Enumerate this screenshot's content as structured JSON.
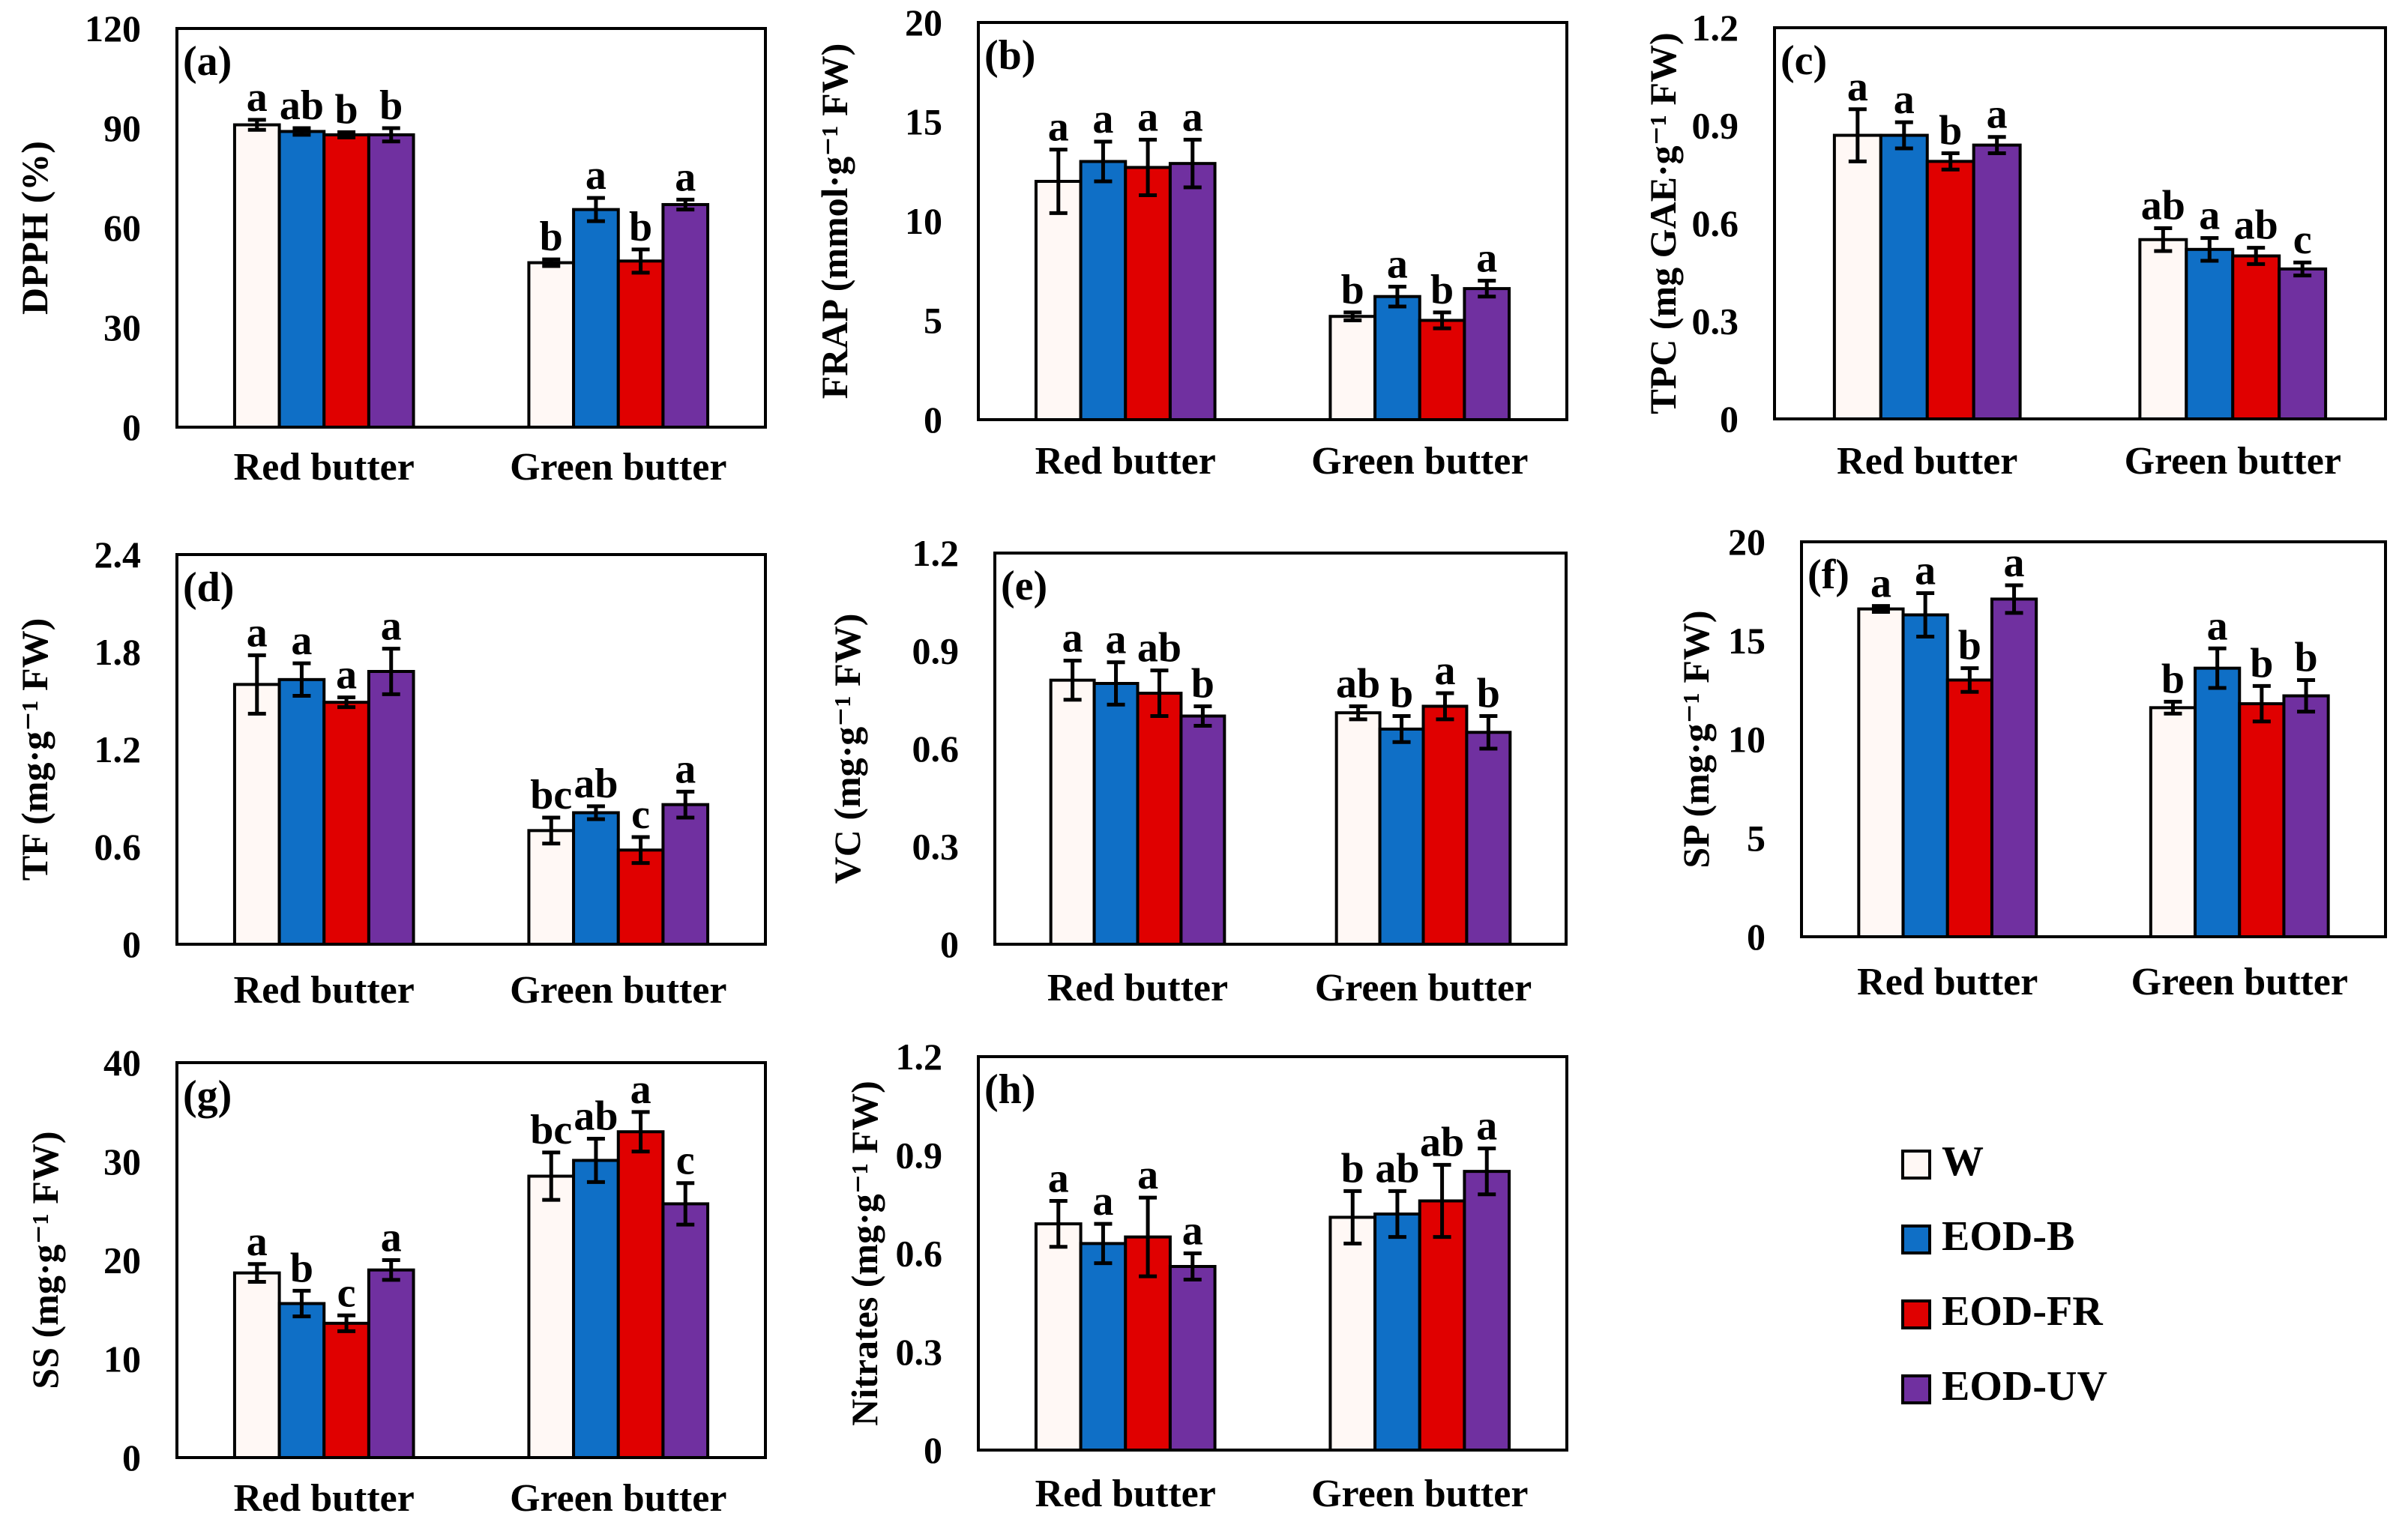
{
  "legend": {
    "items": [
      {
        "name": "W",
        "color": "#fff8f5"
      },
      {
        "name": "EOD-B",
        "color": "#0f6fc6"
      },
      {
        "name": "EOD-FR",
        "color": "#e00000"
      },
      {
        "name": "EOD-UV",
        "color": "#7030a0"
      }
    ]
  },
  "chart_data": [
    {
      "panel": "(a)",
      "type": "bar",
      "ylabel": "DPPH (%)",
      "ylim": [
        0,
        120
      ],
      "yticks": [
        "0",
        "30",
        "60",
        "90",
        "120"
      ],
      "categories": [
        "Red butter",
        "Green butter"
      ],
      "series": [
        {
          "name": "W",
          "values": [
            91,
            49.5
          ],
          "errors": [
            1.5,
            1
          ],
          "letters": [
            "a",
            "b"
          ]
        },
        {
          "name": "EOD-B",
          "values": [
            89,
            65.5
          ],
          "errors": [
            1,
            3.5
          ],
          "letters": [
            "ab",
            "a"
          ]
        },
        {
          "name": "EOD-FR",
          "values": [
            88,
            50
          ],
          "errors": [
            0.8,
            3.5
          ],
          "letters": [
            "b",
            "b"
          ]
        },
        {
          "name": "EOD-UV",
          "values": [
            88,
            67
          ],
          "errors": [
            2,
            1.5
          ],
          "letters": [
            "b",
            "a"
          ]
        }
      ]
    },
    {
      "panel": "(b)",
      "type": "bar",
      "ylabel": "FRAP (mmol·g⁻¹ FW)",
      "ylim": [
        0,
        20
      ],
      "yticks": [
        "0",
        "5",
        "10",
        "15",
        "20"
      ],
      "categories": [
        "Red butter",
        "Green butter"
      ],
      "series": [
        {
          "name": "W",
          "values": [
            12,
            5.2
          ],
          "errors": [
            1.6,
            0.2
          ],
          "letters": [
            "a",
            "b"
          ]
        },
        {
          "name": "EOD-B",
          "values": [
            13,
            6.2
          ],
          "errors": [
            1,
            0.5
          ],
          "letters": [
            "a",
            "a"
          ]
        },
        {
          "name": "EOD-FR",
          "values": [
            12.7,
            5
          ],
          "errors": [
            1.4,
            0.4
          ],
          "letters": [
            "a",
            "b"
          ]
        },
        {
          "name": "EOD-UV",
          "values": [
            12.9,
            6.6
          ],
          "errors": [
            1.2,
            0.4
          ],
          "letters": [
            "a",
            "a"
          ]
        }
      ]
    },
    {
      "panel": "(c)",
      "type": "bar",
      "ylabel": "TPC (mg GAE·g⁻¹ FW)",
      "ylim": [
        0,
        1.2
      ],
      "yticks": [
        "0",
        "0.3",
        "0.6",
        "0.9",
        "1.2"
      ],
      "categories": [
        "Red butter",
        "Green butter"
      ],
      "series": [
        {
          "name": "W",
          "values": [
            0.87,
            0.55
          ],
          "errors": [
            0.08,
            0.035
          ],
          "letters": [
            "a",
            "ab"
          ]
        },
        {
          "name": "EOD-B",
          "values": [
            0.87,
            0.52
          ],
          "errors": [
            0.04,
            0.035
          ],
          "letters": [
            "a",
            "a"
          ]
        },
        {
          "name": "EOD-FR",
          "values": [
            0.79,
            0.5
          ],
          "errors": [
            0.025,
            0.025
          ],
          "letters": [
            "b",
            "ab"
          ]
        },
        {
          "name": "EOD-UV",
          "values": [
            0.84,
            0.46
          ],
          "errors": [
            0.025,
            0.02
          ],
          "letters": [
            "a",
            "c"
          ]
        }
      ]
    },
    {
      "panel": "(d)",
      "type": "bar",
      "ylabel": "TF (mg·g⁻¹ FW)",
      "ylim": [
        0,
        2.4
      ],
      "yticks": [
        "0",
        "0.6",
        "1.2",
        "1.8",
        "2.4"
      ],
      "categories": [
        "Red butter",
        "Green butter"
      ],
      "series": [
        {
          "name": "W",
          "values": [
            1.6,
            0.7
          ],
          "errors": [
            0.18,
            0.08
          ],
          "letters": [
            "a",
            "bc"
          ]
        },
        {
          "name": "EOD-B",
          "values": [
            1.63,
            0.81
          ],
          "errors": [
            0.1,
            0.04
          ],
          "letters": [
            "a",
            "ab"
          ]
        },
        {
          "name": "EOD-FR",
          "values": [
            1.49,
            0.58
          ],
          "errors": [
            0.03,
            0.08
          ],
          "letters": [
            "a",
            "c"
          ]
        },
        {
          "name": "EOD-UV",
          "values": [
            1.68,
            0.86
          ],
          "errors": [
            0.14,
            0.08
          ],
          "letters": [
            "a",
            "a"
          ]
        }
      ]
    },
    {
      "panel": "(e)",
      "type": "bar",
      "ylabel": "VC (mg·g⁻¹ FW)",
      "ylim": [
        0,
        1.2
      ],
      "yticks": [
        "0",
        "0.3",
        "0.6",
        "0.9",
        "1.2"
      ],
      "categories": [
        "Red butter",
        "Green butter"
      ],
      "series": [
        {
          "name": "W",
          "values": [
            0.81,
            0.71
          ],
          "errors": [
            0.06,
            0.02
          ],
          "letters": [
            "a",
            "ab"
          ]
        },
        {
          "name": "EOD-B",
          "values": [
            0.8,
            0.66
          ],
          "errors": [
            0.065,
            0.04
          ],
          "letters": [
            "a",
            "b"
          ]
        },
        {
          "name": "EOD-FR",
          "values": [
            0.77,
            0.73
          ],
          "errors": [
            0.07,
            0.04
          ],
          "letters": [
            "ab",
            "a"
          ]
        },
        {
          "name": "EOD-UV",
          "values": [
            0.7,
            0.65
          ],
          "errors": [
            0.03,
            0.05
          ],
          "letters": [
            "b",
            "b"
          ]
        }
      ]
    },
    {
      "panel": "(f)",
      "type": "bar",
      "ylabel": "SP (mg·g⁻¹ FW)",
      "ylim": [
        0,
        20
      ],
      "yticks": [
        "0",
        "5",
        "10",
        "15",
        "20"
      ],
      "categories": [
        "Red butter",
        "Green butter"
      ],
      "series": [
        {
          "name": "W",
          "values": [
            16.6,
            11.6
          ],
          "errors": [
            0.15,
            0.3
          ],
          "letters": [
            "a",
            "b"
          ]
        },
        {
          "name": "EOD-B",
          "values": [
            16.3,
            13.6
          ],
          "errors": [
            1.1,
            1
          ],
          "letters": [
            "a",
            "a"
          ]
        },
        {
          "name": "EOD-FR",
          "values": [
            13,
            11.8
          ],
          "errors": [
            0.6,
            0.9
          ],
          "letters": [
            "b",
            "b"
          ]
        },
        {
          "name": "EOD-UV",
          "values": [
            17.1,
            12.2
          ],
          "errors": [
            0.7,
            0.8
          ],
          "letters": [
            "a",
            "b"
          ]
        }
      ]
    },
    {
      "panel": "(g)",
      "type": "bar",
      "ylabel": "SS (mg·g⁻¹ FW)",
      "ylim": [
        0,
        40
      ],
      "yticks": [
        "0",
        "10",
        "20",
        "30",
        "40"
      ],
      "categories": [
        "Red butter",
        "Green butter"
      ],
      "series": [
        {
          "name": "W",
          "values": [
            18.7,
            28.5
          ],
          "errors": [
            0.9,
            2.4
          ],
          "letters": [
            "a",
            "bc"
          ]
        },
        {
          "name": "EOD-B",
          "values": [
            15.6,
            30.1
          ],
          "errors": [
            1.3,
            2.2
          ],
          "letters": [
            "b",
            "ab"
          ]
        },
        {
          "name": "EOD-FR",
          "values": [
            13.6,
            33
          ],
          "errors": [
            0.8,
            2
          ],
          "letters": [
            "c",
            "a"
          ]
        },
        {
          "name": "EOD-UV",
          "values": [
            19,
            25.7
          ],
          "errors": [
            1,
            2.1
          ],
          "letters": [
            "a",
            "c"
          ]
        }
      ]
    },
    {
      "panel": "(h)",
      "type": "bar",
      "ylabel": "Nitrates (mg·g⁻¹ FW)",
      "ylim": [
        0,
        1.2
      ],
      "yticks": [
        "0",
        "0.3",
        "0.6",
        "0.9",
        "1.2"
      ],
      "categories": [
        "Red butter",
        "Green butter"
      ],
      "series": [
        {
          "name": "W",
          "values": [
            0.69,
            0.71
          ],
          "errors": [
            0.07,
            0.08
          ],
          "letters": [
            "a",
            "b"
          ]
        },
        {
          "name": "EOD-B",
          "values": [
            0.63,
            0.72
          ],
          "errors": [
            0.06,
            0.07
          ],
          "letters": [
            "a",
            "ab"
          ]
        },
        {
          "name": "EOD-FR",
          "values": [
            0.65,
            0.76
          ],
          "errors": [
            0.12,
            0.11
          ],
          "letters": [
            "a",
            "ab"
          ]
        },
        {
          "name": "EOD-UV",
          "values": [
            0.56,
            0.85
          ],
          "errors": [
            0.04,
            0.07
          ],
          "letters": [
            "a",
            "a"
          ]
        }
      ]
    }
  ]
}
